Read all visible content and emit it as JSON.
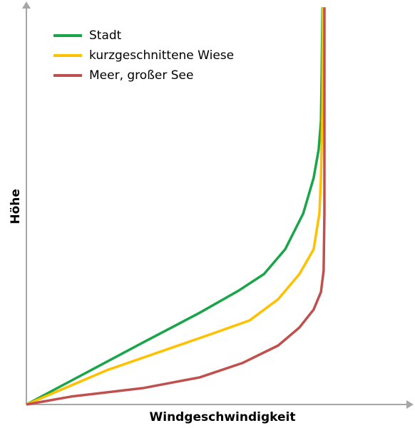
{
  "chart_data": {
    "type": "line",
    "xlabel": "Windgeschwindigkeit",
    "ylabel": "Höhe",
    "xlim": [
      0,
      100
    ],
    "ylim": [
      0,
      100
    ],
    "series": [
      {
        "name": "Stadt",
        "color": "#1aa54b",
        "x": [
          0,
          15.4,
          30.2,
          45,
          55.2,
          61.7,
          67.2,
          71.9,
          74.6,
          75.9,
          76.5,
          76.7,
          76.9
        ],
        "values": [
          0,
          7.9,
          15.5,
          23,
          28.6,
          32.7,
          38.9,
          47.9,
          56.8,
          63.9,
          71,
          83.6,
          99.6
        ]
      },
      {
        "name": "kurzgeschnittene Wiese",
        "color": "#ffc000",
        "x": [
          0,
          20.9,
          48.7,
          58,
          65.4,
          70.9,
          74.6,
          76.1,
          76.5,
          76.9,
          77
        ],
        "values": [
          0,
          8.6,
          17.9,
          21.1,
          26.4,
          32.7,
          38.9,
          47.9,
          56.8,
          74.6,
          99.6
        ]
      },
      {
        "name": "Meer, großer See",
        "color": "#c0504d",
        "x": [
          0,
          11.7,
          30.2,
          45,
          56.1,
          65.4,
          70.9,
          74.6,
          76.5,
          77.2,
          77.4,
          77.4,
          77.4
        ],
        "values": [
          0,
          2,
          4.1,
          6.8,
          10.4,
          14.8,
          19.3,
          23.8,
          28.2,
          33.6,
          47.9,
          74.6,
          99.6
        ]
      }
    ]
  }
}
